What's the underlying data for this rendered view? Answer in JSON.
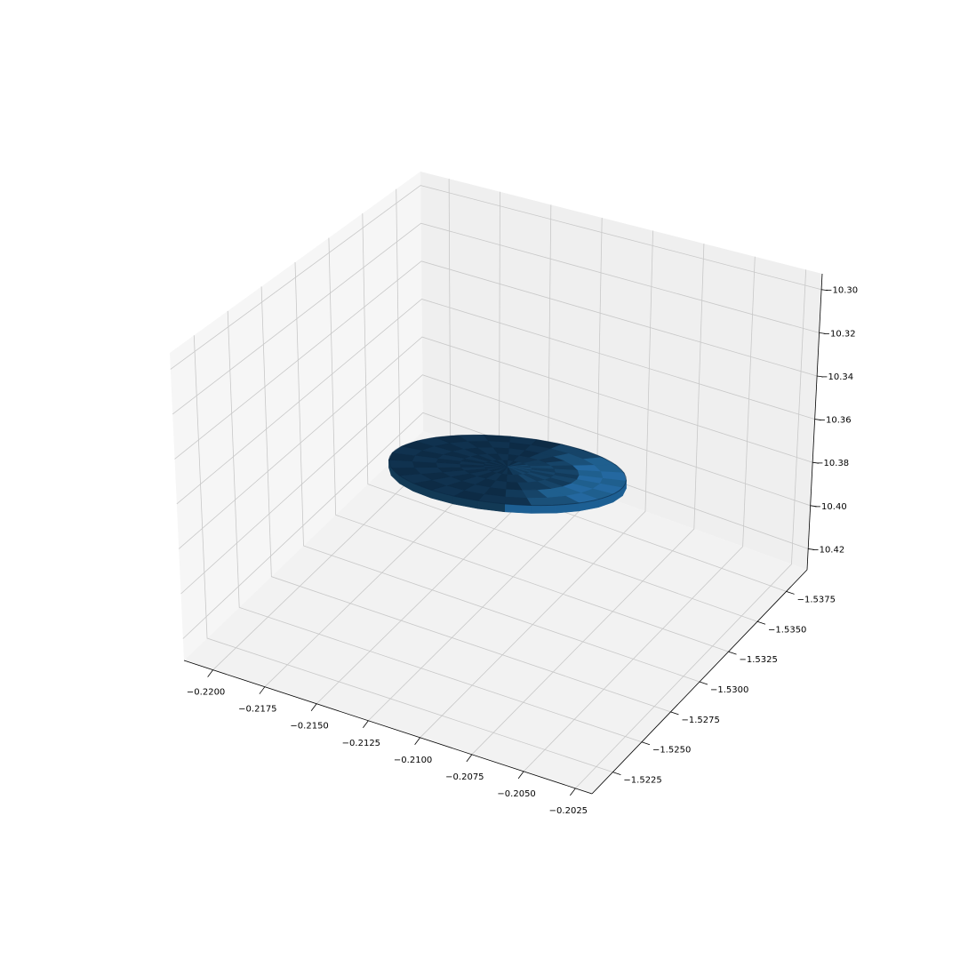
{
  "chart_data": {
    "type": "surface3d",
    "title": "",
    "xlabel": "",
    "ylabel": "",
    "zlabel": "",
    "grid": true,
    "x_ticks": [
      "−0.2200",
      "−0.2175",
      "−0.2150",
      "−0.2125",
      "−0.2100",
      "−0.2075",
      "−0.2050",
      "−0.2025"
    ],
    "y_ticks": [
      "−1.5225",
      "−1.5250",
      "−1.5275",
      "−1.5300",
      "−1.5325",
      "−1.5350",
      "−1.5375"
    ],
    "z_ticks": [
      "−10.30",
      "−10.32",
      "−10.34",
      "−10.36",
      "−10.38",
      "−10.40",
      "−10.42"
    ],
    "xlim": [
      -0.2214,
      -0.2017
    ],
    "ylim": [
      -1.5393,
      -1.5207
    ],
    "zlim": [
      -10.4297,
      -10.2927
    ],
    "surface": {
      "shape": "ellipsoid",
      "center": {
        "x": -0.2125,
        "y": -1.531,
        "z": -10.38
      },
      "semi_axes": {
        "x": 0.0058,
        "y": 0.0042,
        "z": 0.0023
      },
      "color": "#1f77b4"
    }
  }
}
